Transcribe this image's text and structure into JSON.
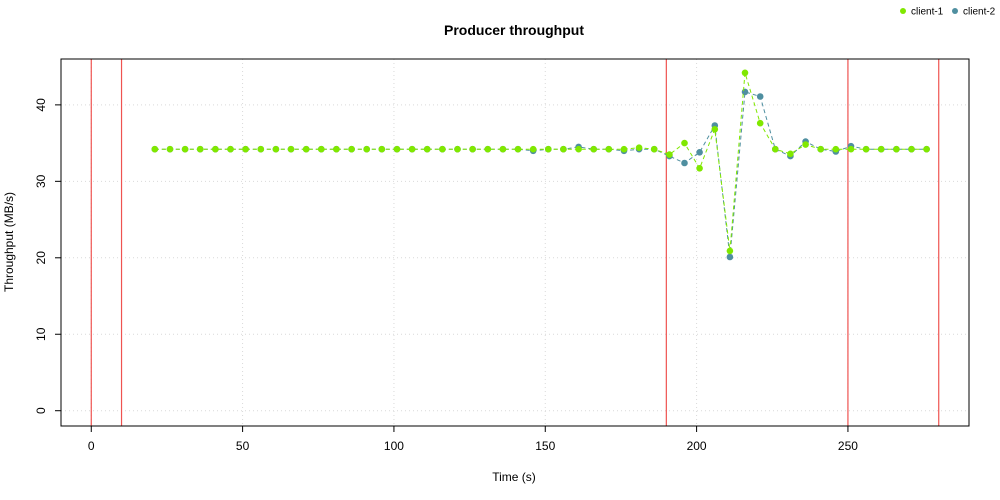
{
  "chart_data": {
    "type": "line",
    "title": "Producer throughput",
    "xlabel": "Time (s)",
    "ylabel": "Throughput (MB/s)",
    "xlim": [
      -10,
      290
    ],
    "ylim": [
      -2,
      46
    ],
    "xticks": [
      0,
      50,
      100,
      150,
      200,
      250
    ],
    "yticks": [
      0,
      10,
      20,
      30,
      40
    ],
    "grid": true,
    "legend_position": "top-right",
    "vertical_lines": [
      0,
      10,
      190,
      250,
      280
    ],
    "vertical_line_color": "#ef5350",
    "series": [
      {
        "name": "client-2",
        "color": "#4f8fa0",
        "x": [
          21,
          26,
          31,
          36,
          41,
          46,
          51,
          56,
          61,
          66,
          71,
          76,
          81,
          86,
          91,
          96,
          101,
          106,
          111,
          116,
          121,
          126,
          131,
          136,
          141,
          146,
          151,
          156,
          161,
          166,
          171,
          176,
          181,
          186,
          191,
          196,
          201,
          206,
          211,
          216,
          221,
          226,
          231,
          236,
          241,
          246,
          251,
          256,
          261,
          266,
          271,
          276
        ],
        "y": [
          34.2,
          34.2,
          34.2,
          34.2,
          34.2,
          34.2,
          34.2,
          34.2,
          34.2,
          34.2,
          34.2,
          34.2,
          34.2,
          34.2,
          34.2,
          34.2,
          34.2,
          34.2,
          34.2,
          34.2,
          34.2,
          34.2,
          34.2,
          34.2,
          34.2,
          34.0,
          34.2,
          34.2,
          34.5,
          34.2,
          34.2,
          34.0,
          34.2,
          34.2,
          33.3,
          32.4,
          33.8,
          37.3,
          20.1,
          41.7,
          41.1,
          34.2,
          33.3,
          35.2,
          34.2,
          33.9,
          34.6,
          34.2,
          34.2,
          34.2,
          34.2,
          34.2
        ]
      },
      {
        "name": "client-1",
        "color": "#80e800",
        "x": [
          21,
          26,
          31,
          36,
          41,
          46,
          51,
          56,
          61,
          66,
          71,
          76,
          81,
          86,
          91,
          96,
          101,
          106,
          111,
          116,
          121,
          126,
          131,
          136,
          141,
          146,
          151,
          156,
          161,
          166,
          171,
          176,
          181,
          186,
          191,
          196,
          201,
          206,
          211,
          216,
          221,
          226,
          231,
          236,
          241,
          246,
          251,
          256,
          261,
          266,
          271,
          276
        ],
        "y": [
          34.2,
          34.2,
          34.2,
          34.2,
          34.2,
          34.2,
          34.2,
          34.2,
          34.2,
          34.2,
          34.2,
          34.2,
          34.2,
          34.2,
          34.2,
          34.2,
          34.2,
          34.2,
          34.2,
          34.2,
          34.2,
          34.2,
          34.2,
          34.2,
          34.2,
          34.2,
          34.2,
          34.2,
          34.2,
          34.2,
          34.2,
          34.2,
          34.4,
          34.2,
          33.5,
          35.0,
          31.7,
          36.8,
          20.9,
          44.2,
          37.6,
          34.2,
          33.6,
          34.8,
          34.2,
          34.2,
          34.2,
          34.2,
          34.2,
          34.2,
          34.2,
          34.2
        ]
      }
    ]
  }
}
